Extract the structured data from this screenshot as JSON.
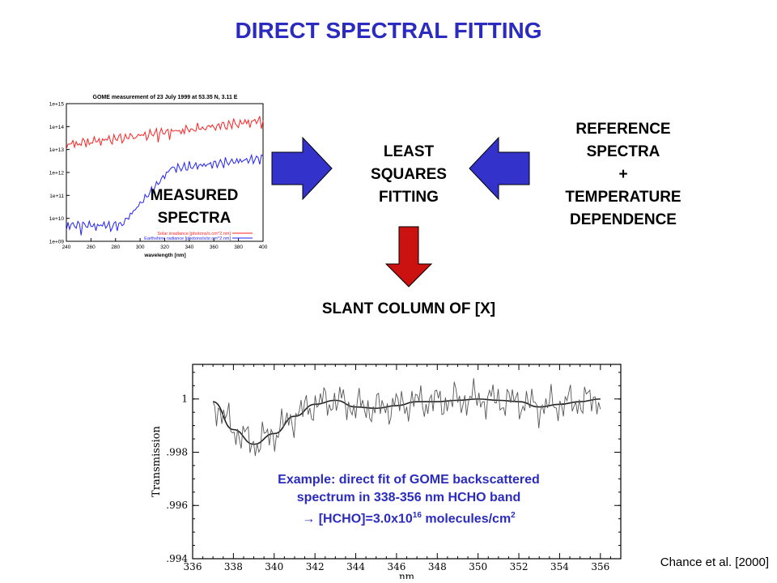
{
  "title": "DIRECT SPECTRAL FITTING",
  "least_squares": [
    "LEAST",
    "SQUARES",
    "FITTING"
  ],
  "reference": [
    "REFERENCE",
    "SPECTRA",
    "+",
    "TEMPERATURE",
    "DEPENDENCE"
  ],
  "measured": [
    "MEASURED",
    "SPECTRA"
  ],
  "output": "SLANT COLUMN OF [X]",
  "caption": {
    "line1": "Example: direct fit of GOME backscattered",
    "line2": "spectrum in 338-356 nm HCHO band",
    "line3_arrow": "→",
    "line3_pre": "[HCHO]=3.0x10",
    "line3_exp": "16",
    "line3_mid": " molecules/cm",
    "line3_exp2": "2"
  },
  "credit": "Chance et al. [2000]",
  "colors": {
    "title": "#2b2bbf",
    "arrow_blue": "#3333cc",
    "arrow_red": "#cc1111",
    "solar": "#ff2222",
    "earthshine": "#2222ff"
  },
  "gome_chart": {
    "title": "GOME measurement of 23 July 1999 at 53.35 N, 3.11 E",
    "xlabel": "wavelength [nm]",
    "x_ticks": [
      "240",
      "260",
      "280",
      "300",
      "320",
      "340",
      "360",
      "380",
      "400"
    ],
    "y_ticks": [
      "1e+15",
      "1e+14",
      "1e+13",
      "1e+12",
      "1e+11",
      "1e+10",
      "1e+09"
    ],
    "legend": [
      "Solar irradiance [photons/s.cm^2.nm]",
      "Earthshine radiance [photons/s/sr.cm^2.nm]"
    ]
  },
  "chart_data": {
    "type": "line",
    "xlabel": "nm",
    "ylabel": "Transmission",
    "xlim": [
      336,
      357
    ],
    "ylim": [
      0.994,
      1.0013
    ],
    "x_ticks": [
      "336",
      "338",
      "340",
      "342",
      "344",
      "346",
      "348",
      "350",
      "352",
      "354",
      "356"
    ],
    "y_ticks": [
      "1",
      ".998",
      ".996",
      ".994"
    ],
    "series": [
      {
        "x": [
          337,
          338,
          339,
          340,
          341,
          342,
          343,
          344,
          345,
          346,
          347,
          348,
          349,
          350,
          351,
          352,
          353,
          354,
          355,
          356
        ],
        "values": [
          0.9999,
          0.99885,
          0.9983,
          0.9987,
          0.99935,
          0.9998,
          0.99995,
          0.9997,
          0.99965,
          0.99975,
          0.9999,
          0.9999,
          0.99995,
          1.0,
          0.99995,
          0.9999,
          0.9997,
          0.9998,
          0.9999,
          1.0
        ]
      }
    ]
  }
}
